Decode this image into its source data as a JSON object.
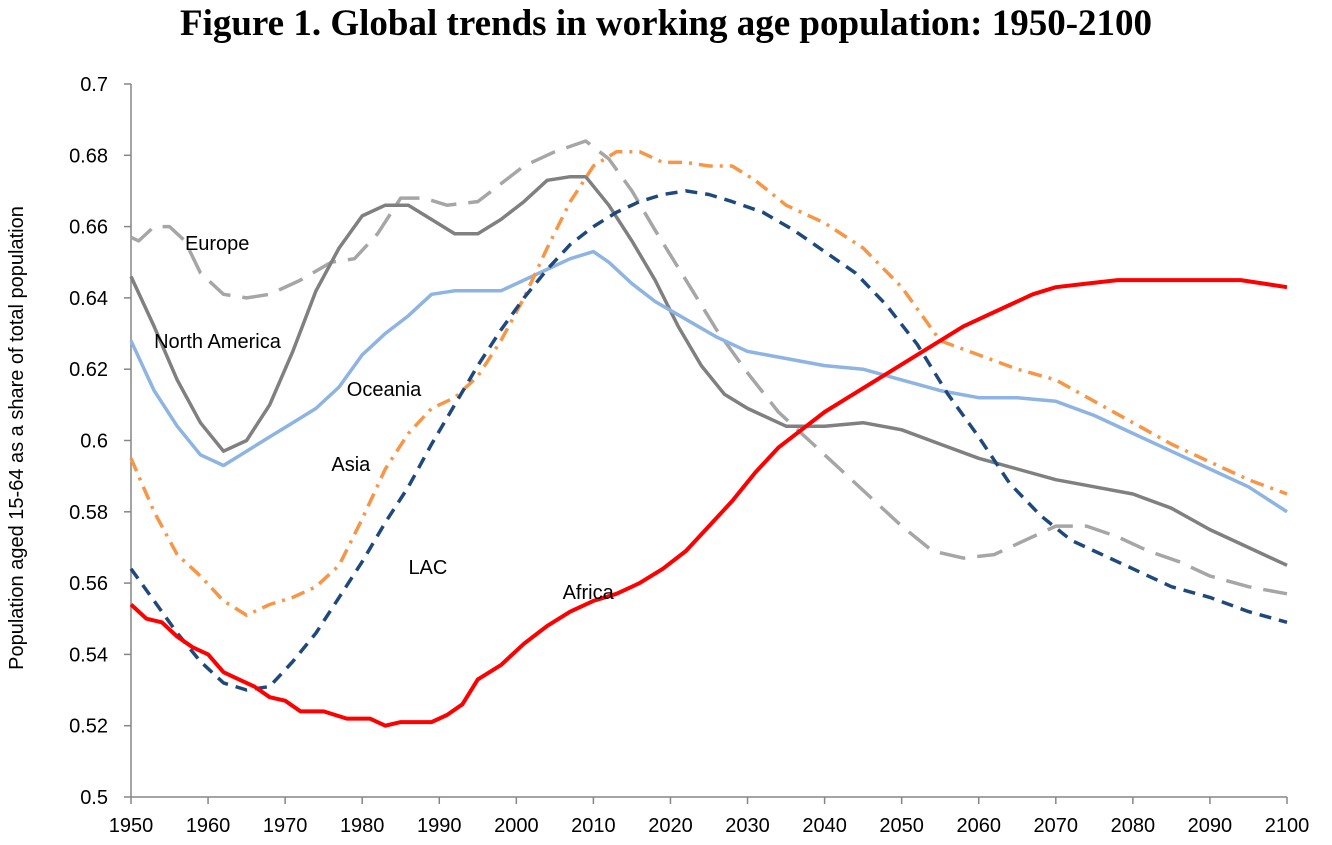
{
  "chart_data": {
    "type": "line",
    "title": "Figure 1. Global trends in working age population: 1950-2100",
    "ylabel": "Population aged 15-64 as a share of total population",
    "xlabel": "",
    "xlim": [
      1950,
      2100
    ],
    "ylim": [
      0.5,
      0.7
    ],
    "x_ticks": [
      1950,
      1960,
      1970,
      1980,
      1990,
      2000,
      2010,
      2020,
      2030,
      2040,
      2050,
      2060,
      2070,
      2080,
      2090,
      2100
    ],
    "y_ticks": [
      0.5,
      0.52,
      0.54,
      0.56,
      0.58,
      0.6,
      0.62,
      0.64,
      0.66,
      0.68,
      0.7
    ],
    "y_tick_labels": [
      "0.5",
      "0.52",
      "0.54",
      "0.56",
      "0.58",
      "0.6",
      "0.62",
      "0.64",
      "0.66",
      "0.68",
      "0.7"
    ],
    "grid": false,
    "legend": "none (inline labels)",
    "series": [
      {
        "name": "Europe",
        "color": "#a6a6a6",
        "style": "long-dash",
        "label_at": [
          1957,
          0.6535
        ],
        "points": [
          [
            1950,
            0.657
          ],
          [
            1951,
            0.656
          ],
          [
            1953,
            0.66
          ],
          [
            1955,
            0.66
          ],
          [
            1957,
            0.656
          ],
          [
            1959,
            0.647
          ],
          [
            1962,
            0.641
          ],
          [
            1965,
            0.64
          ],
          [
            1968,
            0.641
          ],
          [
            1972,
            0.645
          ],
          [
            1976,
            0.65
          ],
          [
            1979,
            0.651
          ],
          [
            1982,
            0.658
          ],
          [
            1985,
            0.668
          ],
          [
            1988,
            0.668
          ],
          [
            1991,
            0.666
          ],
          [
            1995,
            0.667
          ],
          [
            1998,
            0.672
          ],
          [
            2001,
            0.677
          ],
          [
            2005,
            0.681
          ],
          [
            2009,
            0.684
          ],
          [
            2012,
            0.679
          ],
          [
            2015,
            0.67
          ],
          [
            2018,
            0.659
          ],
          [
            2022,
            0.645
          ],
          [
            2026,
            0.631
          ],
          [
            2030,
            0.619
          ],
          [
            2034,
            0.608
          ],
          [
            2038,
            0.6
          ],
          [
            2042,
            0.592
          ],
          [
            2046,
            0.584
          ],
          [
            2050,
            0.576
          ],
          [
            2054,
            0.569
          ],
          [
            2058,
            0.567
          ],
          [
            2062,
            0.568
          ],
          [
            2066,
            0.572
          ],
          [
            2070,
            0.576
          ],
          [
            2074,
            0.576
          ],
          [
            2078,
            0.573
          ],
          [
            2082,
            0.569
          ],
          [
            2086,
            0.566
          ],
          [
            2090,
            0.562
          ],
          [
            2095,
            0.559
          ],
          [
            2100,
            0.557
          ]
        ]
      },
      {
        "name": "North America",
        "color": "#808080",
        "style": "solid",
        "label_at": [
          1953,
          0.626
        ],
        "points": [
          [
            1950,
            0.646
          ],
          [
            1953,
            0.632
          ],
          [
            1956,
            0.617
          ],
          [
            1959,
            0.605
          ],
          [
            1962,
            0.597
          ],
          [
            1965,
            0.6
          ],
          [
            1968,
            0.61
          ],
          [
            1971,
            0.625
          ],
          [
            1974,
            0.642
          ],
          [
            1977,
            0.654
          ],
          [
            1980,
            0.663
          ],
          [
            1983,
            0.666
          ],
          [
            1986,
            0.666
          ],
          [
            1989,
            0.662
          ],
          [
            1992,
            0.658
          ],
          [
            1995,
            0.658
          ],
          [
            1998,
            0.662
          ],
          [
            2001,
            0.667
          ],
          [
            2004,
            0.673
          ],
          [
            2007,
            0.674
          ],
          [
            2009,
            0.674
          ],
          [
            2012,
            0.666
          ],
          [
            2015,
            0.656
          ],
          [
            2018,
            0.645
          ],
          [
            2021,
            0.632
          ],
          [
            2024,
            0.621
          ],
          [
            2027,
            0.613
          ],
          [
            2030,
            0.609
          ],
          [
            2035,
            0.604
          ],
          [
            2040,
            0.604
          ],
          [
            2045,
            0.605
          ],
          [
            2050,
            0.603
          ],
          [
            2055,
            0.599
          ],
          [
            2060,
            0.595
          ],
          [
            2065,
            0.592
          ],
          [
            2070,
            0.589
          ],
          [
            2075,
            0.587
          ],
          [
            2080,
            0.585
          ],
          [
            2085,
            0.581
          ],
          [
            2090,
            0.575
          ],
          [
            2095,
            0.57
          ],
          [
            2100,
            0.565
          ]
        ]
      },
      {
        "name": "Oceania",
        "color": "#8db4e2",
        "style": "solid",
        "label_at": [
          1978,
          0.6125
        ],
        "points": [
          [
            1950,
            0.628
          ],
          [
            1953,
            0.614
          ],
          [
            1956,
            0.604
          ],
          [
            1959,
            0.596
          ],
          [
            1962,
            0.593
          ],
          [
            1965,
            0.597
          ],
          [
            1968,
            0.601
          ],
          [
            1971,
            0.605
          ],
          [
            1974,
            0.609
          ],
          [
            1977,
            0.615
          ],
          [
            1980,
            0.624
          ],
          [
            1983,
            0.63
          ],
          [
            1986,
            0.635
          ],
          [
            1989,
            0.641
          ],
          [
            1992,
            0.642
          ],
          [
            1995,
            0.642
          ],
          [
            1998,
            0.642
          ],
          [
            2001,
            0.645
          ],
          [
            2004,
            0.648
          ],
          [
            2007,
            0.651
          ],
          [
            2010,
            0.653
          ],
          [
            2012,
            0.65
          ],
          [
            2015,
            0.644
          ],
          [
            2018,
            0.639
          ],
          [
            2022,
            0.634
          ],
          [
            2026,
            0.629
          ],
          [
            2030,
            0.625
          ],
          [
            2035,
            0.623
          ],
          [
            2040,
            0.621
          ],
          [
            2045,
            0.62
          ],
          [
            2050,
            0.617
          ],
          [
            2055,
            0.614
          ],
          [
            2060,
            0.612
          ],
          [
            2065,
            0.612
          ],
          [
            2070,
            0.611
          ],
          [
            2075,
            0.607
          ],
          [
            2080,
            0.602
          ],
          [
            2085,
            0.597
          ],
          [
            2090,
            0.592
          ],
          [
            2095,
            0.587
          ],
          [
            2100,
            0.58
          ]
        ]
      },
      {
        "name": "Asia",
        "color": "#f79646",
        "style": "dash-dot",
        "label_at": [
          1976,
          0.5915
        ],
        "points": [
          [
            1950,
            0.595
          ],
          [
            1953,
            0.58
          ],
          [
            1956,
            0.568
          ],
          [
            1959,
            0.562
          ],
          [
            1962,
            0.555
          ],
          [
            1965,
            0.551
          ],
          [
            1968,
            0.554
          ],
          [
            1971,
            0.556
          ],
          [
            1974,
            0.559
          ],
          [
            1977,
            0.565
          ],
          [
            1980,
            0.578
          ],
          [
            1983,
            0.592
          ],
          [
            1986,
            0.602
          ],
          [
            1989,
            0.609
          ],
          [
            1992,
            0.612
          ],
          [
            1995,
            0.618
          ],
          [
            1998,
            0.628
          ],
          [
            2001,
            0.64
          ],
          [
            2004,
            0.654
          ],
          [
            2007,
            0.667
          ],
          [
            2010,
            0.677
          ],
          [
            2013,
            0.681
          ],
          [
            2016,
            0.681
          ],
          [
            2019,
            0.678
          ],
          [
            2022,
            0.678
          ],
          [
            2025,
            0.677
          ],
          [
            2028,
            0.677
          ],
          [
            2031,
            0.673
          ],
          [
            2035,
            0.666
          ],
          [
            2040,
            0.661
          ],
          [
            2045,
            0.654
          ],
          [
            2050,
            0.643
          ],
          [
            2055,
            0.628
          ],
          [
            2060,
            0.624
          ],
          [
            2065,
            0.62
          ],
          [
            2070,
            0.617
          ],
          [
            2075,
            0.611
          ],
          [
            2080,
            0.605
          ],
          [
            2085,
            0.599
          ],
          [
            2090,
            0.594
          ],
          [
            2095,
            0.589
          ],
          [
            2100,
            0.585
          ]
        ]
      },
      {
        "name": "LAC",
        "color": "#1f497d",
        "style": "short-dash",
        "label_at": [
          1986,
          0.5625
        ],
        "points": [
          [
            1950,
            0.564
          ],
          [
            1953,
            0.555
          ],
          [
            1956,
            0.546
          ],
          [
            1959,
            0.538
          ],
          [
            1962,
            0.532
          ],
          [
            1965,
            0.53
          ],
          [
            1968,
            0.531
          ],
          [
            1971,
            0.538
          ],
          [
            1974,
            0.546
          ],
          [
            1977,
            0.556
          ],
          [
            1980,
            0.566
          ],
          [
            1983,
            0.577
          ],
          [
            1986,
            0.587
          ],
          [
            1989,
            0.599
          ],
          [
            1992,
            0.61
          ],
          [
            1995,
            0.621
          ],
          [
            1998,
            0.631
          ],
          [
            2001,
            0.64
          ],
          [
            2004,
            0.648
          ],
          [
            2007,
            0.655
          ],
          [
            2010,
            0.66
          ],
          [
            2013,
            0.664
          ],
          [
            2016,
            0.667
          ],
          [
            2019,
            0.669
          ],
          [
            2022,
            0.67
          ],
          [
            2025,
            0.669
          ],
          [
            2028,
            0.667
          ],
          [
            2032,
            0.664
          ],
          [
            2036,
            0.659
          ],
          [
            2040,
            0.653
          ],
          [
            2044,
            0.647
          ],
          [
            2048,
            0.638
          ],
          [
            2052,
            0.627
          ],
          [
            2056,
            0.613
          ],
          [
            2060,
            0.601
          ],
          [
            2064,
            0.588
          ],
          [
            2068,
            0.579
          ],
          [
            2072,
            0.572
          ],
          [
            2076,
            0.568
          ],
          [
            2080,
            0.564
          ],
          [
            2085,
            0.559
          ],
          [
            2090,
            0.556
          ],
          [
            2095,
            0.552
          ],
          [
            2100,
            0.549
          ]
        ]
      },
      {
        "name": "Africa",
        "color": "#ff0000",
        "style": "solid",
        "label_at": [
          2006,
          0.5555
        ],
        "points": [
          [
            1950,
            0.554
          ],
          [
            1952,
            0.55
          ],
          [
            1954,
            0.549
          ],
          [
            1956,
            0.545
          ],
          [
            1958,
            0.542
          ],
          [
            1960,
            0.54
          ],
          [
            1962,
            0.535
          ],
          [
            1964,
            0.533
          ],
          [
            1966,
            0.531
          ],
          [
            1968,
            0.528
          ],
          [
            1970,
            0.527
          ],
          [
            1972,
            0.524
          ],
          [
            1975,
            0.524
          ],
          [
            1978,
            0.522
          ],
          [
            1981,
            0.522
          ],
          [
            1983,
            0.52
          ],
          [
            1985,
            0.521
          ],
          [
            1987,
            0.521
          ],
          [
            1989,
            0.521
          ],
          [
            1991,
            0.523
          ],
          [
            1993,
            0.526
          ],
          [
            1995,
            0.533
          ],
          [
            1998,
            0.537
          ],
          [
            2001,
            0.543
          ],
          [
            2004,
            0.548
          ],
          [
            2007,
            0.552
          ],
          [
            2010,
            0.555
          ],
          [
            2013,
            0.557
          ],
          [
            2016,
            0.56
          ],
          [
            2019,
            0.564
          ],
          [
            2022,
            0.569
          ],
          [
            2025,
            0.576
          ],
          [
            2028,
            0.583
          ],
          [
            2031,
            0.591
          ],
          [
            2034,
            0.598
          ],
          [
            2037,
            0.603
          ],
          [
            2040,
            0.608
          ],
          [
            2043,
            0.612
          ],
          [
            2046,
            0.616
          ],
          [
            2049,
            0.62
          ],
          [
            2052,
            0.624
          ],
          [
            2055,
            0.628
          ],
          [
            2058,
            0.632
          ],
          [
            2061,
            0.635
          ],
          [
            2064,
            0.638
          ],
          [
            2067,
            0.641
          ],
          [
            2070,
            0.643
          ],
          [
            2074,
            0.644
          ],
          [
            2078,
            0.645
          ],
          [
            2082,
            0.645
          ],
          [
            2086,
            0.645
          ],
          [
            2090,
            0.645
          ],
          [
            2094,
            0.645
          ],
          [
            2097,
            0.644
          ],
          [
            2100,
            0.643
          ]
        ]
      }
    ]
  }
}
